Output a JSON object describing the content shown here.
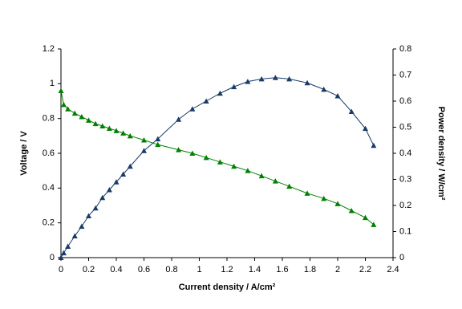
{
  "chart_data": {
    "type": "line",
    "xlabel": "Current density / A/cm²",
    "ylabel": "Voltage / V",
    "y2label": "Power density / W/cm²",
    "x": [
      0,
      0.02,
      0.05,
      0.1,
      0.15,
      0.2,
      0.25,
      0.3,
      0.35,
      0.4,
      0.45,
      0.5,
      0.6,
      0.7,
      0.85,
      0.95,
      1.05,
      1.15,
      1.25,
      1.35,
      1.45,
      1.55,
      1.65,
      1.78,
      1.9,
      2.0,
      2.1,
      2.2,
      2.26
    ],
    "series": [
      {
        "color": "#008000",
        "values": [
          0.96,
          0.88,
          0.855,
          0.83,
          0.81,
          0.79,
          0.77,
          0.757,
          0.743,
          0.73,
          0.716,
          0.7,
          0.676,
          0.65,
          0.62,
          0.6,
          0.575,
          0.55,
          0.525,
          0.5,
          0.47,
          0.44,
          0.41,
          0.37,
          0.34,
          0.31,
          0.27,
          0.23,
          0.19
        ]
      },
      {
        "color": "#1b3a66",
        "axis": "y2",
        "values": [
          0,
          0.018,
          0.043,
          0.083,
          0.12,
          0.16,
          0.19,
          0.23,
          0.26,
          0.29,
          0.32,
          0.35,
          0.41,
          0.455,
          0.53,
          0.57,
          0.6,
          0.63,
          0.655,
          0.675,
          0.685,
          0.69,
          0.685,
          0.67,
          0.645,
          0.62,
          0.56,
          0.495,
          0.43
        ]
      }
    ],
    "xlim": [
      0,
      2.4
    ],
    "xticks": [
      0,
      0.2,
      0.4,
      0.6,
      0.8,
      1,
      1.2,
      1.4,
      1.6,
      1.8,
      2,
      2.2,
      2.4
    ],
    "ylim": [
      0,
      1.2
    ],
    "yticks": [
      0,
      0.2,
      0.4,
      0.6,
      0.8,
      1,
      1.2
    ],
    "y2lim": [
      0,
      0.8
    ],
    "y2ticks": [
      0,
      0.1,
      0.2,
      0.3,
      0.4,
      0.5,
      0.6,
      0.7,
      0.8
    ],
    "grid": false
  }
}
